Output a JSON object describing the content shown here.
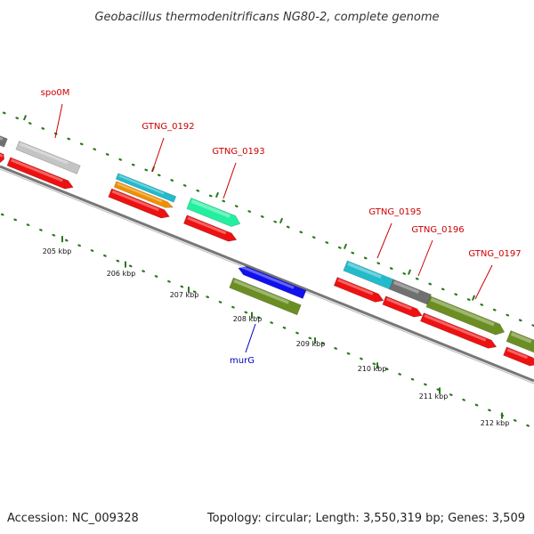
{
  "title": "Geobacillus thermodenitrificans NG80-2, complete genome",
  "footer": {
    "accession": "Accession: NC_009328",
    "topology": "Topology: circular; Length: 3,550,319 bp; Genes: 3,509"
  },
  "colors": {
    "label_red": "#cc0000",
    "label_blue": "#0000bb",
    "tick_green": "#2a7a1a",
    "backbone": "#888888",
    "cds_red": "#ee1111",
    "gray_gene": "#707070",
    "light_gray_gene": "#c4c4c4",
    "cyan_gene": "#22bbcc",
    "orange_gene": "#f09000",
    "mint_gene": "#22f0a0",
    "blue_gene": "#1111ee",
    "olive_gene": "#6b8e23"
  },
  "scale_labels": [
    "205 kbp",
    "206 kbp",
    "207 kbp",
    "208 kbp",
    "209 kbp",
    "210 kbp",
    "211 kbp",
    "212 kbp"
  ],
  "gene_labels": [
    {
      "name": "spo0M",
      "color": "label_red"
    },
    {
      "name": "GTNG_0192",
      "color": "label_red"
    },
    {
      "name": "GTNG_0193",
      "color": "label_red"
    },
    {
      "name": "GTNG_0195",
      "color": "label_red"
    },
    {
      "name": "GTNG_0196",
      "color": "label_red"
    },
    {
      "name": "GTNG_0197",
      "color": "label_red"
    },
    {
      "name": "murG",
      "color": "label_blue"
    }
  ]
}
